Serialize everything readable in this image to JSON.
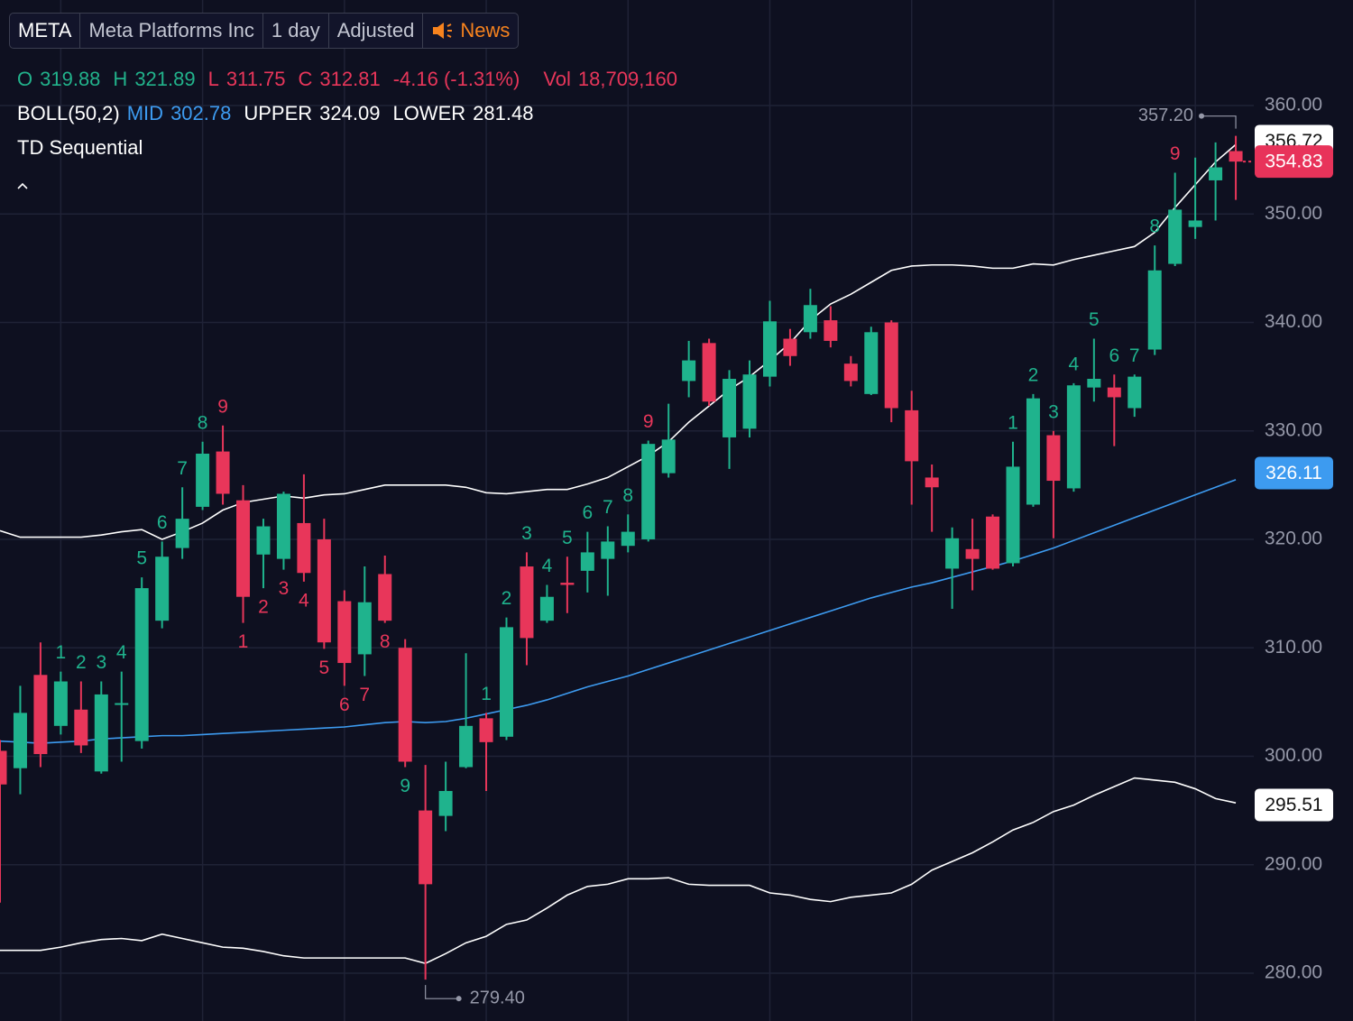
{
  "toolbar": {
    "symbol": "META",
    "name": "Meta Platforms Inc",
    "interval": "1 day",
    "adjustment": "Adjusted",
    "news": "News"
  },
  "chart_data": {
    "type": "candlestick",
    "ohlc_legend": [
      {
        "label": "O",
        "value": 319.88,
        "color": "#22b28b"
      },
      {
        "label": "H",
        "value": 321.89,
        "color": "#22b28b"
      },
      {
        "label": "L",
        "value": 311.75,
        "color": "#e8365a"
      },
      {
        "label": "C",
        "value": 312.81,
        "color": "#e8365a"
      }
    ],
    "change": "-4.16 (-1.31%)",
    "volume": {
      "label": "Vol",
      "value": "18,709,160"
    },
    "indicator": "BOLL(50,2)",
    "indicator2": "TD Sequential",
    "up_color": "#1fb38d",
    "down_color": "#e8365a",
    "open": [
      300.5,
      298.9,
      307.5,
      302.8,
      304.3,
      298.6,
      304.8,
      301.4,
      312.5,
      319.2,
      323.0,
      328.1,
      323.6,
      318.6,
      318.2,
      321.5,
      320.0,
      314.3,
      309.4,
      316.8,
      310.0,
      295.0,
      294.5,
      299.0,
      303.5,
      301.8,
      317.5,
      312.5,
      316.0,
      317.1,
      318.2,
      319.4,
      320.0,
      326.1,
      334.6,
      338.1,
      329.4,
      330.2,
      335.0,
      338.5,
      339.1,
      340.2,
      336.2,
      333.4,
      340.0,
      331.9,
      325.7,
      317.3,
      319.1,
      322.1,
      317.8,
      323.2,
      329.6,
      324.7,
      334.0,
      334.0,
      332.1,
      337.5,
      345.4,
      348.8,
      353.1,
      355.8
    ],
    "high": [
      301.5,
      306.5,
      310.5,
      307.8,
      306.9,
      306.9,
      307.8,
      316.5,
      319.8,
      324.8,
      329.0,
      330.5,
      325.0,
      321.9,
      324.4,
      326.0,
      321.9,
      315.3,
      317.5,
      318.5,
      310.8,
      299.2,
      299.5,
      309.5,
      304.0,
      312.8,
      318.8,
      315.8,
      318.4,
      320.7,
      321.2,
      322.3,
      329.1,
      332.5,
      338.3,
      338.5,
      335.6,
      336.5,
      342.0,
      339.4,
      343.1,
      341.5,
      336.9,
      339.6,
      340.2,
      333.7,
      326.9,
      321.1,
      321.9,
      322.3,
      329.0,
      333.4,
      330.0,
      334.4,
      338.5,
      335.2,
      335.2,
      347.1,
      353.8,
      355.2,
      356.6,
      357.2
    ],
    "low": [
      286.5,
      296.5,
      299.0,
      302.0,
      300.3,
      298.4,
      299.5,
      300.7,
      311.8,
      318.2,
      322.7,
      323.2,
      312.3,
      315.5,
      317.2,
      316.1,
      309.9,
      306.5,
      307.4,
      312.3,
      299.0,
      279.4,
      293.1,
      298.9,
      296.8,
      301.5,
      308.4,
      312.3,
      313.2,
      315.1,
      314.8,
      318.8,
      319.8,
      325.7,
      333.1,
      332.3,
      326.5,
      329.4,
      334.1,
      336.0,
      338.5,
      337.7,
      334.1,
      333.3,
      330.8,
      323.2,
      320.7,
      313.6,
      315.3,
      317.2,
      317.5,
      323.0,
      320.1,
      324.4,
      332.7,
      328.6,
      331.3,
      337.0,
      345.2,
      347.7,
      349.4,
      351.3
    ],
    "close": [
      297.4,
      304.0,
      300.2,
      306.9,
      301.0,
      305.7,
      304.9,
      315.5,
      318.4,
      321.9,
      327.9,
      324.2,
      314.7,
      321.2,
      324.2,
      316.9,
      310.5,
      308.6,
      314.2,
      312.5,
      299.5,
      288.2,
      296.8,
      302.8,
      301.3,
      311.9,
      310.9,
      314.7,
      315.8,
      318.8,
      319.8,
      320.7,
      328.8,
      329.2,
      336.5,
      332.7,
      334.8,
      335.2,
      340.1,
      336.9,
      341.6,
      338.3,
      334.6,
      339.1,
      332.1,
      327.2,
      324.8,
      320.1,
      318.2,
      317.3,
      326.7,
      333.0,
      325.4,
      334.2,
      334.8,
      333.1,
      335.0,
      344.8,
      350.4,
      349.4,
      354.3,
      354.83
    ],
    "series": [
      {
        "name": "MID",
        "color": "#3d9bf0",
        "legend_value": 302.78,
        "values": [
          301.4,
          301.3,
          301.2,
          301.3,
          301.4,
          301.6,
          301.7,
          301.8,
          301.9,
          301.9,
          302.0,
          302.1,
          302.2,
          302.3,
          302.4,
          302.5,
          302.6,
          302.7,
          302.9,
          303.1,
          303.2,
          303.1,
          303.2,
          303.5,
          303.9,
          304.3,
          304.7,
          305.2,
          305.8,
          306.4,
          306.9,
          307.4,
          308.0,
          308.6,
          309.2,
          309.8,
          310.4,
          311.0,
          311.6,
          312.2,
          312.8,
          313.4,
          314.0,
          314.6,
          315.1,
          315.6,
          316.0,
          316.5,
          317.0,
          317.5,
          318.0,
          318.6,
          319.2,
          319.9,
          320.6,
          321.3,
          322.0,
          322.7,
          323.4,
          324.1,
          324.8,
          325.5
        ]
      },
      {
        "name": "UPPER",
        "color": "#ffffff",
        "legend_value": 324.09,
        "values": [
          320.8,
          320.2,
          320.2,
          320.2,
          320.2,
          320.4,
          320.7,
          320.9,
          320.0,
          320.7,
          321.5,
          322.7,
          323.4,
          323.7,
          324.0,
          323.8,
          324.1,
          324.2,
          324.6,
          325.0,
          325.0,
          325.0,
          325.0,
          324.8,
          324.3,
          324.2,
          324.4,
          324.6,
          324.6,
          325.1,
          325.7,
          326.7,
          327.7,
          329.0,
          330.8,
          332.3,
          333.8,
          335.0,
          336.5,
          338.1,
          340.2,
          341.7,
          342.6,
          343.7,
          344.8,
          345.2,
          345.3,
          345.3,
          345.2,
          345.0,
          345.0,
          345.4,
          345.3,
          345.8,
          346.2,
          346.6,
          347.0,
          348.3,
          350.6,
          352.7,
          354.8,
          356.4
        ]
      },
      {
        "name": "LOWER",
        "color": "#ffffff",
        "legend_value": 281.48,
        "values": [
          282.1,
          282.1,
          282.1,
          282.4,
          282.8,
          283.1,
          283.2,
          283.0,
          283.6,
          283.2,
          282.8,
          282.4,
          282.3,
          282.0,
          281.6,
          281.4,
          281.4,
          281.4,
          281.4,
          281.4,
          281.4,
          280.9,
          281.8,
          282.8,
          283.4,
          284.5,
          284.9,
          286.0,
          287.2,
          288.0,
          288.2,
          288.7,
          288.7,
          288.8,
          288.2,
          288.1,
          288.1,
          288.1,
          287.4,
          287.2,
          286.8,
          286.6,
          287.0,
          287.2,
          287.4,
          288.2,
          289.5,
          290.3,
          291.1,
          292.1,
          293.2,
          293.9,
          294.9,
          295.5,
          296.4,
          297.2,
          298.0,
          297.8,
          297.6,
          297.0,
          296.1,
          295.7
        ]
      }
    ],
    "td_labels": [
      {
        "index": 3,
        "text": "1",
        "color": "#1fb38d",
        "position": "above"
      },
      {
        "index": 4,
        "text": "2",
        "color": "#1fb38d",
        "position": "above"
      },
      {
        "index": 5,
        "text": "3",
        "color": "#1fb38d",
        "position": "above"
      },
      {
        "index": 6,
        "text": "4",
        "color": "#1fb38d",
        "position": "above"
      },
      {
        "index": 7,
        "text": "5",
        "color": "#1fb38d",
        "position": "above"
      },
      {
        "index": 8,
        "text": "6",
        "color": "#1fb38d",
        "position": "above"
      },
      {
        "index": 9,
        "text": "7",
        "color": "#1fb38d",
        "position": "above"
      },
      {
        "index": 10,
        "text": "8",
        "color": "#1fb38d",
        "position": "above"
      },
      {
        "index": 11,
        "text": "9",
        "color": "#e8365a",
        "position": "above"
      },
      {
        "index": 12,
        "text": "1",
        "color": "#e8365a",
        "position": "below"
      },
      {
        "index": 13,
        "text": "2",
        "color": "#e8365a",
        "position": "below"
      },
      {
        "index": 14,
        "text": "3",
        "color": "#e8365a",
        "position": "below"
      },
      {
        "index": 15,
        "text": "4",
        "color": "#e8365a",
        "position": "below"
      },
      {
        "index": 16,
        "text": "5",
        "color": "#e8365a",
        "position": "below"
      },
      {
        "index": 17,
        "text": "6",
        "color": "#e8365a",
        "position": "below"
      },
      {
        "index": 18,
        "text": "7",
        "color": "#e8365a",
        "position": "below"
      },
      {
        "index": 19,
        "text": "8",
        "color": "#e8365a",
        "position": "below"
      },
      {
        "index": 20,
        "text": "9",
        "color": "#1fb38d",
        "position": "below"
      },
      {
        "index": 24,
        "text": "1",
        "color": "#1fb38d",
        "position": "above"
      },
      {
        "index": 25,
        "text": "2",
        "color": "#1fb38d",
        "position": "above"
      },
      {
        "index": 26,
        "text": "3",
        "color": "#1fb38d",
        "position": "above"
      },
      {
        "index": 27,
        "text": "4",
        "color": "#1fb38d",
        "position": "above"
      },
      {
        "index": 28,
        "text": "5",
        "color": "#1fb38d",
        "position": "above"
      },
      {
        "index": 29,
        "text": "6",
        "color": "#1fb38d",
        "position": "above"
      },
      {
        "index": 30,
        "text": "7",
        "color": "#1fb38d",
        "position": "above"
      },
      {
        "index": 31,
        "text": "8",
        "color": "#1fb38d",
        "position": "above"
      },
      {
        "index": 32,
        "text": "9",
        "color": "#e8365a",
        "position": "above"
      },
      {
        "index": 50,
        "text": "1",
        "color": "#1fb38d",
        "position": "above"
      },
      {
        "index": 51,
        "text": "2",
        "color": "#1fb38d",
        "position": "above"
      },
      {
        "index": 52,
        "text": "3",
        "color": "#1fb38d",
        "position": "above"
      },
      {
        "index": 53,
        "text": "4",
        "color": "#1fb38d",
        "position": "above"
      },
      {
        "index": 54,
        "text": "5",
        "color": "#1fb38d",
        "position": "above"
      },
      {
        "index": 55,
        "text": "6",
        "color": "#1fb38d",
        "position": "above"
      },
      {
        "index": 56,
        "text": "7",
        "color": "#1fb38d",
        "position": "above"
      },
      {
        "index": 57,
        "text": "8",
        "color": "#1fb38d",
        "position": "above"
      },
      {
        "index": 58,
        "text": "9",
        "color": "#e8365a",
        "position": "above"
      }
    ],
    "high_marker": {
      "value": 357.2,
      "label": "357.20"
    },
    "low_marker": {
      "value": 279.4,
      "label": "279.40"
    },
    "price_badges": [
      {
        "value": 356.72,
        "color": "#ffffff",
        "text_color": "#111111"
      },
      {
        "value": 354.83,
        "color": "#e8335a",
        "text_color": "#ffffff"
      },
      {
        "value": 326.11,
        "color": "#3d9bf0",
        "text_color": "#ffffff"
      },
      {
        "value": 295.51,
        "color": "#ffffff",
        "text_color": "#111111"
      }
    ],
    "ylim": [
      275.59,
      369.73
    ],
    "yticks": [
      {
        "value": 280,
        "label": "280.00"
      },
      {
        "value": 290,
        "label": "290.00"
      },
      {
        "value": 300,
        "label": "300.00"
      },
      {
        "value": 310,
        "label": "310.00"
      },
      {
        "value": 320,
        "label": "320.00"
      },
      {
        "value": 330,
        "label": "330.00"
      },
      {
        "value": 340,
        "label": "340.00"
      },
      {
        "value": 350,
        "label": "350.00"
      },
      {
        "value": 360,
        "label": "360.00"
      }
    ],
    "grid": true
  }
}
